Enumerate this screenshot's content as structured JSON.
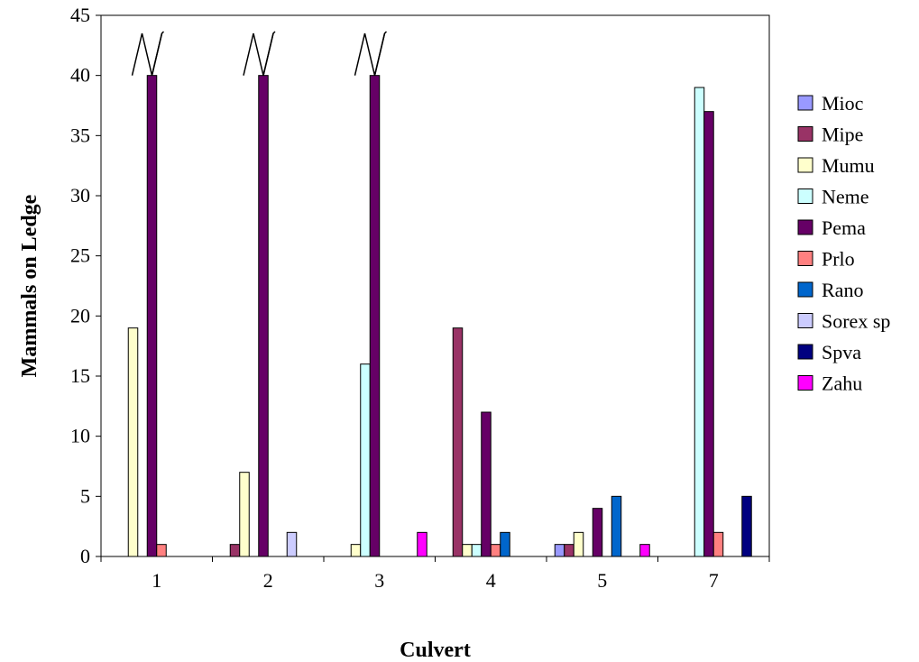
{
  "chart_data": {
    "type": "bar",
    "title": "",
    "xlabel": "Culvert",
    "ylabel": "Mammals on Ledge",
    "ylim": [
      0,
      45
    ],
    "ytick_step": 5,
    "categories": [
      "1",
      "2",
      "3",
      "4",
      "5",
      "7"
    ],
    "legend_position": "right",
    "grid": false,
    "series": [
      {
        "name": "Mioc",
        "color": "#9999ff",
        "values": [
          0,
          0,
          0,
          0,
          1,
          0
        ]
      },
      {
        "name": "Mipe",
        "color": "#993366",
        "values": [
          0,
          1,
          0,
          19,
          1,
          0
        ]
      },
      {
        "name": "Mumu",
        "color": "#ffffcc",
        "values": [
          19,
          7,
          1,
          1,
          2,
          0
        ]
      },
      {
        "name": "Neme",
        "color": "#ccffff",
        "values": [
          0,
          0,
          16,
          1,
          0,
          39
        ]
      },
      {
        "name": "Pema",
        "color": "#660066",
        "values": [
          40,
          40,
          40,
          12,
          4,
          37
        ]
      },
      {
        "name": "Prlo",
        "color": "#ff8080",
        "values": [
          1,
          0,
          0,
          1,
          0,
          2
        ]
      },
      {
        "name": "Rano",
        "color": "#0066cc",
        "values": [
          0,
          0,
          0,
          2,
          5,
          0
        ]
      },
      {
        "name": "Sorex sp",
        "color": "#ccccff",
        "values": [
          0,
          2,
          0,
          0,
          0,
          0
        ]
      },
      {
        "name": "Spva",
        "color": "#000080",
        "values": [
          0,
          0,
          0,
          0,
          0,
          5
        ]
      },
      {
        "name": "Zahu",
        "color": "#ff00ff",
        "values": [
          0,
          0,
          2,
          0,
          1,
          0
        ]
      }
    ],
    "axis_breaks": [
      {
        "category": "1",
        "series": "Pema"
      },
      {
        "category": "2",
        "series": "Pema"
      },
      {
        "category": "3",
        "series": "Pema"
      }
    ]
  }
}
